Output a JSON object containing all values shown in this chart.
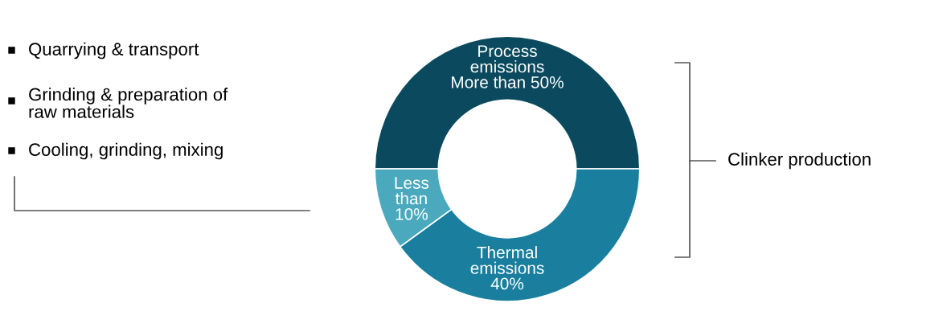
{
  "chart_data": {
    "type": "donut",
    "categories": [
      "Process emissions",
      "Thermal emissions",
      null
    ],
    "values": [
      50,
      40,
      10
    ],
    "colors": [
      "#0b4a5e",
      "#1a7f9e",
      "#4aa9bd"
    ],
    "value_labels": [
      "More than 50%",
      "40%",
      "Less than 10%"
    ],
    "annotations": [
      "Quarrying & transport",
      "Grinding & preparation of raw materials",
      "Cooling, grinding, mixing",
      "Clinker production"
    ],
    "legend": false
  }
}
